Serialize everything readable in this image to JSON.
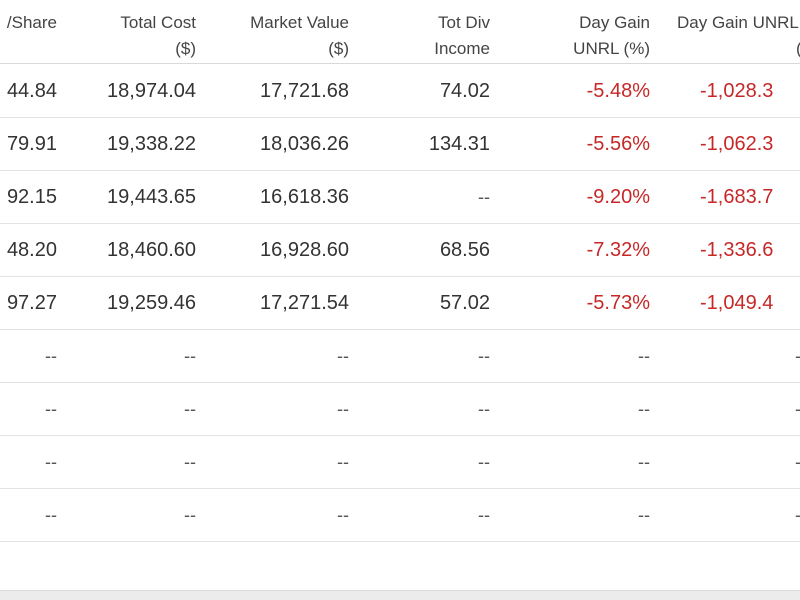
{
  "table": {
    "headers": [
      {
        "l1": "/Share",
        "l2": ""
      },
      {
        "l1": "Total Cost",
        "l2": "($)"
      },
      {
        "l1": "Market Value",
        "l2": "($)"
      },
      {
        "l1": "Tot Div",
        "l2": "Income"
      },
      {
        "l1": "Day Gain",
        "l2": "UNRL (%)"
      },
      {
        "l1": "Day Gain UNRL",
        "l2": "($"
      }
    ],
    "rows": [
      {
        "per_share": "44.84",
        "total_cost": "18,974.04",
        "market_value": "17,721.68",
        "tot_div": "74.02",
        "day_gain_pct": "-5.48%",
        "day_gain_usd": "-1,028.3"
      },
      {
        "per_share": "79.91",
        "total_cost": "19,338.22",
        "market_value": "18,036.26",
        "tot_div": "134.31",
        "day_gain_pct": "-5.56%",
        "day_gain_usd": "-1,062.3"
      },
      {
        "per_share": "92.15",
        "total_cost": "19,443.65",
        "market_value": "16,618.36",
        "tot_div": "--",
        "day_gain_pct": "-9.20%",
        "day_gain_usd": "-1,683.7"
      },
      {
        "per_share": "48.20",
        "total_cost": "18,460.60",
        "market_value": "16,928.60",
        "tot_div": "68.56",
        "day_gain_pct": "-7.32%",
        "day_gain_usd": "-1,336.6"
      },
      {
        "per_share": "97.27",
        "total_cost": "19,259.46",
        "market_value": "17,271.54",
        "tot_div": "57.02",
        "day_gain_pct": "-5.73%",
        "day_gain_usd": "-1,049.4"
      },
      {
        "per_share": "--",
        "total_cost": "--",
        "market_value": "--",
        "tot_div": "--",
        "day_gain_pct": "--",
        "day_gain_usd": "-"
      },
      {
        "per_share": "--",
        "total_cost": "--",
        "market_value": "--",
        "tot_div": "--",
        "day_gain_pct": "--",
        "day_gain_usd": "-"
      },
      {
        "per_share": "--",
        "total_cost": "--",
        "market_value": "--",
        "tot_div": "--",
        "day_gain_pct": "--",
        "day_gain_usd": "-"
      },
      {
        "per_share": "--",
        "total_cost": "--",
        "market_value": "--",
        "tot_div": "--",
        "day_gain_pct": "--",
        "day_gain_usd": "-"
      }
    ]
  },
  "colors": {
    "negative": "#c62828",
    "text": "#333333",
    "divider": "#e3e3e3"
  }
}
